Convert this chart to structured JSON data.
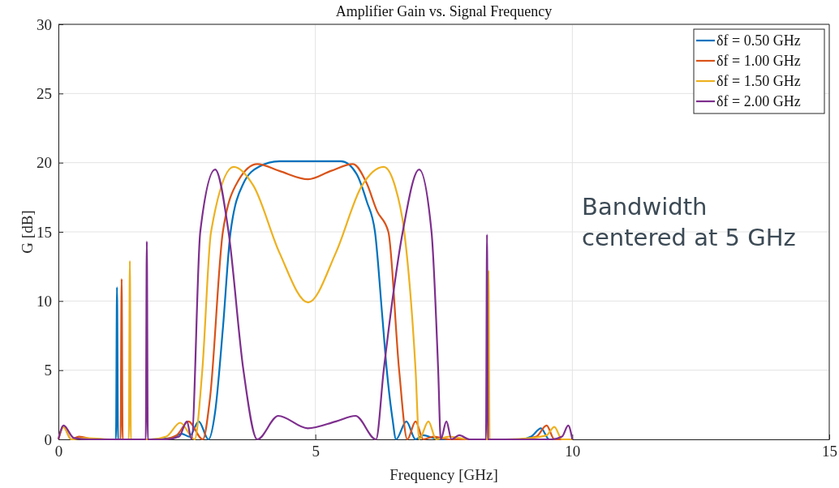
{
  "chart_data": {
    "type": "line",
    "title": "Amplifier Gain vs. Signal Frequency",
    "xlabel": "Frequency [GHz]",
    "ylabel": "G [dB]",
    "xlim": [
      0,
      15
    ],
    "ylim": [
      0,
      30
    ],
    "xticks": [
      0,
      5,
      10,
      15
    ],
    "yticks": [
      0,
      5,
      10,
      15,
      20,
      25,
      30
    ],
    "grid": true,
    "legend": "top right",
    "annotations": [
      "Bandwidth\ncentered at 5 GHz"
    ],
    "series": [
      {
        "name": "δf = 0.50 GHz",
        "color": "#0072bd",
        "x": [
          0.9,
          1.12,
          1.14,
          1.16,
          1.4,
          1.8,
          2.2,
          2.4,
          2.55,
          2.73,
          2.92,
          3.05,
          3.2,
          3.35,
          3.6,
          3.9,
          4.3,
          5,
          5.5,
          5.8,
          6,
          6.16,
          6.3,
          6.39,
          6.5,
          6.57,
          6.77,
          6.95,
          7.1,
          7.3,
          7.6,
          8.0,
          8.5,
          9.0,
          9.2,
          9.39,
          9.55,
          10
        ],
        "values": [
          0,
          0,
          11,
          0,
          0,
          0,
          0.1,
          0.4,
          0.2,
          1.3,
          0,
          2,
          8,
          15,
          18.5,
          19.7,
          20.1,
          20.1,
          20.1,
          19.2,
          17.2,
          15,
          9,
          5,
          1.5,
          0,
          1.3,
          0,
          0.3,
          0.1,
          0,
          0,
          0,
          0,
          0.2,
          0.8,
          0,
          0
        ]
      },
      {
        "name": "δf = 1.00 GHz",
        "color": "#d95319",
        "x": [
          0,
          0.1,
          0.25,
          0.4,
          0.7,
          1.21,
          1.23,
          1.25,
          1.6,
          2.0,
          2.3,
          2.53,
          2.81,
          2.95,
          3.2,
          3.5,
          3.87,
          4.3,
          4.86,
          5.3,
          5.73,
          6.0,
          6.2,
          6.42,
          6.63,
          6.79,
          6.95,
          7.1,
          7.3,
          7.6,
          8.0,
          8.5,
          9.0,
          9.3,
          9.5,
          9.65,
          10
        ],
        "values": [
          0,
          0.9,
          0,
          0.2,
          0,
          0,
          11.6,
          0,
          0,
          0,
          0.3,
          1.3,
          0,
          3,
          15,
          18.7,
          19.9,
          19.4,
          18.8,
          19.4,
          19.9,
          18.5,
          16.5,
          15,
          5,
          0,
          1.3,
          0,
          0.2,
          0,
          0,
          0,
          0,
          0.2,
          1,
          0,
          0
        ]
      },
      {
        "name": "δf = 1.50 GHz",
        "color": "#edb120",
        "x": [
          0,
          0.1,
          0.25,
          0.5,
          1.0,
          1.37,
          1.39,
          1.41,
          1.8,
          2.1,
          2.37,
          2.65,
          2.8,
          2.97,
          3.41,
          3.8,
          4.3,
          4.86,
          5.4,
          5.9,
          6.33,
          6.55,
          6.73,
          6.95,
          7.02,
          7.2,
          7.35,
          7.6,
          8.0,
          8.35,
          8.37,
          8.39,
          8.7,
          9.2,
          9.5,
          9.65,
          9.8,
          10
        ],
        "values": [
          0,
          0.9,
          0,
          0.1,
          0,
          0,
          12.9,
          0,
          0,
          0.2,
          1.2,
          0,
          5,
          15,
          19.7,
          18.3,
          13.5,
          9.9,
          13.5,
          18.3,
          19.7,
          18.3,
          15,
          5,
          0,
          1.3,
          0,
          0.2,
          0,
          0,
          12.2,
          0,
          0,
          0.1,
          0.3,
          0.9,
          0,
          0
        ]
      },
      {
        "name": "δf = 2.00 GHz",
        "color": "#7e2f8e",
        "x": [
          0,
          0.1,
          0.3,
          0.6,
          1.0,
          1.7,
          1.72,
          1.74,
          2.1,
          2.35,
          2.5,
          2.59,
          2.76,
          3.05,
          3.31,
          3.6,
          3.87,
          4.28,
          4.85,
          5.4,
          5.78,
          6.18,
          6.33,
          6.7,
          7.02,
          7.26,
          7.39,
          7.44,
          7.55,
          7.65,
          7.8,
          8.0,
          8.32,
          8.34,
          8.36,
          8.7,
          9.2,
          9.6,
          9.8,
          9.92,
          10
        ],
        "values": [
          0,
          1,
          0.1,
          0,
          0,
          0,
          14.3,
          0,
          0,
          0.2,
          1.3,
          0,
          15,
          19.5,
          15,
          5,
          0,
          1.7,
          0.8,
          1.3,
          1.7,
          0,
          5,
          15,
          19.5,
          15,
          5,
          0,
          1.3,
          0,
          0.3,
          0,
          0,
          14.8,
          0,
          0,
          0,
          0,
          0.2,
          1,
          0
        ]
      }
    ]
  }
}
